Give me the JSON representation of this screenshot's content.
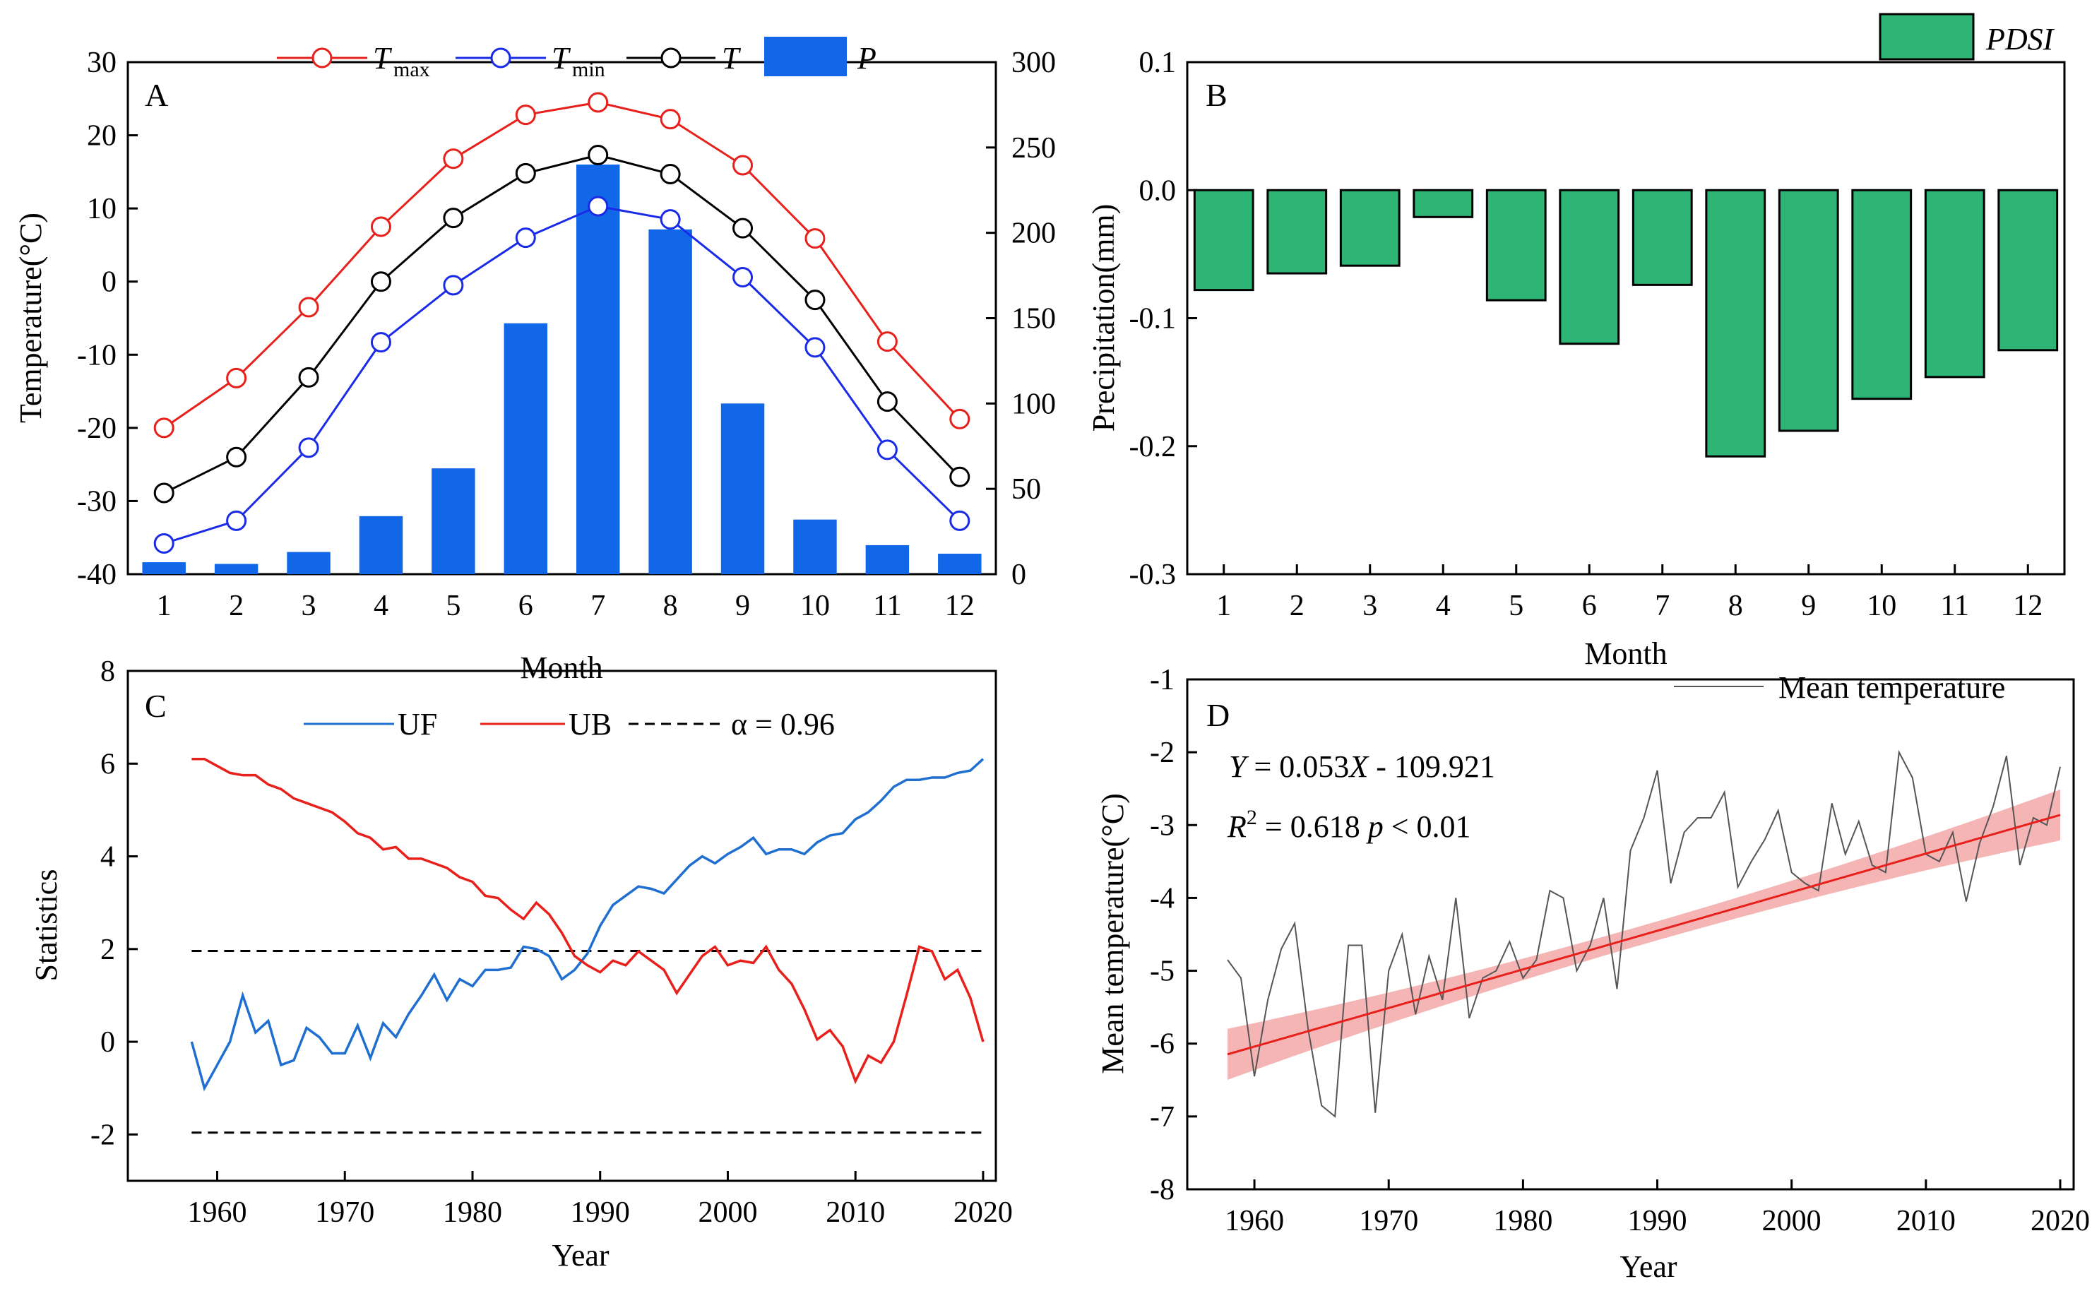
{
  "chart_data": [
    {
      "panel": "A",
      "type": "bar",
      "categories": [
        "1",
        "2",
        "3",
        "4",
        "5",
        "6",
        "7",
        "8",
        "9",
        "10",
        "11",
        "12"
      ],
      "xlabel": "Month",
      "ylabel": "Temperature(°C)",
      "ylim": [
        -40,
        30
      ],
      "yticks": [
        "30",
        "20",
        "10",
        "0",
        "-10",
        "-20",
        "-30",
        "-40"
      ],
      "y2lim": [
        0,
        300
      ],
      "y2ticks": [
        "300",
        "250",
        "200",
        "150",
        "100",
        "50",
        "0"
      ],
      "legend_position": "top",
      "series": [
        {
          "name_main": "T",
          "name_sub": "max",
          "kind": "line",
          "axis": "left",
          "color": "#e8201c",
          "values": [
            -20,
            -13.2,
            -3.5,
            7.5,
            16.8,
            22.8,
            24.5,
            22.2,
            15.9,
            5.9,
            -8.2,
            -18.8
          ]
        },
        {
          "name_main": "T",
          "name_sub": "min",
          "kind": "line",
          "axis": "left",
          "color": "#1a2be8",
          "values": [
            -35.8,
            -32.7,
            -22.7,
            -8.3,
            -0.5,
            6,
            10.3,
            8.5,
            0.6,
            -9,
            -23,
            -32.7
          ]
        },
        {
          "name_main": "T",
          "name_sub": "",
          "kind": "line",
          "axis": "left",
          "color": "#000000",
          "values": [
            -28.9,
            -24,
            -13.1,
            0,
            8.7,
            14.8,
            17.3,
            14.7,
            7.3,
            -2.5,
            -16.4,
            -26.7
          ]
        },
        {
          "name_main": "P",
          "name_sub": "",
          "kind": "bar",
          "axis": "right",
          "color": "#1167e8",
          "values": [
            7,
            6,
            13,
            34,
            62,
            147,
            240,
            202,
            100,
            32,
            17,
            12
          ]
        }
      ]
    },
    {
      "panel": "B",
      "type": "bar",
      "categories": [
        "1",
        "2",
        "3",
        "4",
        "5",
        "6",
        "7",
        "8",
        "9",
        "10",
        "11",
        "12"
      ],
      "xlabel": "Month",
      "ylabel": "Precipitation(mm)",
      "ylim": [
        -0.3,
        0.1
      ],
      "yticks": [
        "0.1",
        "0.0",
        "-0.1",
        "-0.2",
        "-0.3"
      ],
      "legend_position": "top-right",
      "series": [
        {
          "name": "PDSI",
          "color": "#2eb576",
          "values": [
            -0.078,
            -0.065,
            -0.059,
            -0.021,
            -0.086,
            -0.12,
            -0.074,
            -0.208,
            -0.188,
            -0.163,
            -0.146,
            -0.125
          ]
        }
      ]
    },
    {
      "panel": "C",
      "type": "line",
      "xlabel": "Year",
      "ylabel": "Statistics",
      "xlim": [
        1953,
        2021
      ],
      "ylim": [
        -3,
        8
      ],
      "xticks": [
        "1960",
        "1970",
        "1980",
        "1990",
        "2000",
        "2010",
        "2020"
      ],
      "yticks": [
        "8",
        "6",
        "4",
        "2",
        "0",
        "-2"
      ],
      "legend_position": "top",
      "x": [
        1958,
        1959,
        1960,
        1961,
        1962,
        1963,
        1964,
        1965,
        1966,
        1967,
        1968,
        1969,
        1970,
        1971,
        1972,
        1973,
        1974,
        1975,
        1976,
        1977,
        1978,
        1979,
        1980,
        1981,
        1982,
        1983,
        1984,
        1985,
        1986,
        1987,
        1988,
        1989,
        1990,
        1991,
        1992,
        1993,
        1994,
        1995,
        1996,
        1997,
        1998,
        1999,
        2000,
        2001,
        2002,
        2003,
        2004,
        2005,
        2006,
        2007,
        2008,
        2009,
        2010,
        2011,
        2012,
        2013,
        2014,
        2015,
        2016,
        2017,
        2018,
        2019,
        2020
      ],
      "series": [
        {
          "name": "UF",
          "color": "#1f6fd0",
          "values": [
            0,
            -1,
            -0.5,
            0,
            1,
            0.2,
            0.45,
            -0.5,
            -0.4,
            0.3,
            0.1,
            -0.25,
            -0.25,
            0.35,
            -0.35,
            0.4,
            0.1,
            0.6,
            1.0,
            1.45,
            0.9,
            1.35,
            1.2,
            1.55,
            1.55,
            1.6,
            2.05,
            2.0,
            1.85,
            1.35,
            1.55,
            1.9,
            2.5,
            2.95,
            3.15,
            3.35,
            3.3,
            3.2,
            3.5,
            3.8,
            4.0,
            3.85,
            4.05,
            4.2,
            4.4,
            4.05,
            4.15,
            4.15,
            4.05,
            4.3,
            4.45,
            4.5,
            4.8,
            4.95,
            5.2,
            5.5,
            5.65,
            5.65,
            5.7,
            5.7,
            5.8,
            5.85,
            6.1
          ]
        },
        {
          "name": "UB",
          "color": "#e8201c",
          "values": [
            6.1,
            6.1,
            5.95,
            5.8,
            5.75,
            5.75,
            5.55,
            5.45,
            5.25,
            5.15,
            5.05,
            4.95,
            4.75,
            4.5,
            4.4,
            4.15,
            4.2,
            3.95,
            3.95,
            3.85,
            3.75,
            3.55,
            3.45,
            3.15,
            3.1,
            2.85,
            2.65,
            3.0,
            2.75,
            2.35,
            1.85,
            1.65,
            1.5,
            1.75,
            1.65,
            1.95,
            1.75,
            1.55,
            1.05,
            1.45,
            1.85,
            2.05,
            1.65,
            1.75,
            1.7,
            2.05,
            1.55,
            1.25,
            0.7,
            0.05,
            0.25,
            -0.1,
            -0.85,
            -0.3,
            -0.45,
            0.0,
            1.0,
            2.05,
            1.95,
            1.35,
            1.55,
            0.95,
            0.0
          ]
        },
        {
          "name": "α = 0.96",
          "color": "#000000",
          "dashed": true,
          "values_constant": [
            1.96,
            -1.96
          ]
        }
      ]
    },
    {
      "panel": "D",
      "type": "line",
      "xlabel": "Year",
      "ylabel": "Mean temperature(°C)",
      "xlim": [
        1955,
        2021
      ],
      "ylim": [
        -8,
        -1
      ],
      "xticks": [
        "1960",
        "1970",
        "1980",
        "1990",
        "2000",
        "2010",
        "2020"
      ],
      "yticks": [
        "-1",
        "-2",
        "-3",
        "-4",
        "-5",
        "-6",
        "-7",
        "-8"
      ],
      "legend_position": "top-right",
      "annotation_eq": {
        "Y": "Y",
        "rest": " = 0.053",
        "X": "X",
        "tail": " - 109.921"
      },
      "annotation_r2": {
        "R": "R",
        "sup": "2",
        "mid": " = 0.618  ",
        "p": "p",
        "tail": " < 0.01"
      },
      "trend": {
        "slope": 0.053,
        "intercept": -109.921,
        "color": "#e8201c",
        "band_color": "#f4a3a3"
      },
      "x": [
        1958,
        1959,
        1960,
        1961,
        1962,
        1963,
        1964,
        1965,
        1966,
        1967,
        1968,
        1969,
        1970,
        1971,
        1972,
        1973,
        1974,
        1975,
        1976,
        1977,
        1978,
        1979,
        1980,
        1981,
        1982,
        1983,
        1984,
        1985,
        1986,
        1987,
        1988,
        1989,
        1990,
        1991,
        1992,
        1993,
        1994,
        1995,
        1996,
        1997,
        1998,
        1999,
        2000,
        2001,
        2002,
        2003,
        2004,
        2005,
        2006,
        2007,
        2008,
        2009,
        2010,
        2011,
        2012,
        2013,
        2014,
        2015,
        2016,
        2017,
        2018,
        2019,
        2020
      ],
      "series": [
        {
          "name": "Mean temperature",
          "color": "#555555",
          "values": [
            -4.85,
            -5.1,
            -6.45,
            -5.4,
            -4.7,
            -4.35,
            -5.8,
            -6.85,
            -7.0,
            -4.65,
            -4.65,
            -6.95,
            -5.0,
            -4.5,
            -5.6,
            -4.8,
            -5.4,
            -4.0,
            -5.65,
            -5.1,
            -5.0,
            -4.6,
            -5.1,
            -4.85,
            -3.9,
            -4.0,
            -5.0,
            -4.65,
            -4.0,
            -5.25,
            -3.35,
            -2.9,
            -2.25,
            -3.8,
            -3.1,
            -2.9,
            -2.9,
            -2.55,
            -3.85,
            -3.5,
            -3.2,
            -2.8,
            -3.65,
            -3.8,
            -3.9,
            -2.7,
            -3.4,
            -2.95,
            -3.55,
            -3.65,
            -2.0,
            -2.35,
            -3.4,
            -3.5,
            -3.1,
            -4.05,
            -3.25,
            -2.75,
            -2.05,
            -3.55,
            -2.9,
            -3.0,
            -2.2
          ]
        }
      ]
    }
  ]
}
